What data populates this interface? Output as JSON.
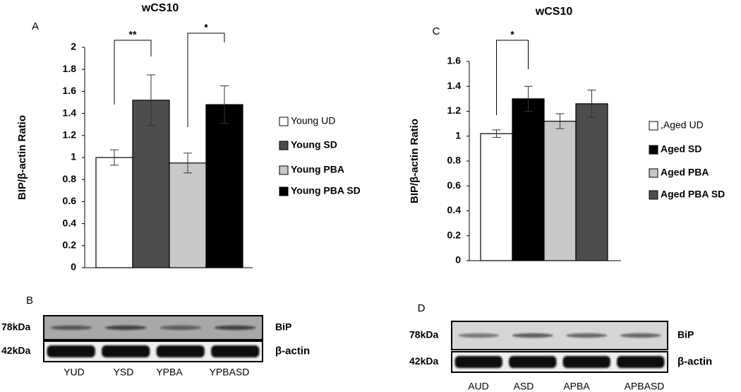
{
  "chart_data": [
    {
      "type": "bar",
      "panel": "A",
      "title": "wCS10",
      "y_label": "BIP/β-actin Ratio",
      "categories": [
        null
      ],
      "series": [
        {
          "name": "Young UD",
          "color": "#ffffff",
          "values": [
            1.0
          ],
          "errors": [
            0.07
          ]
        },
        {
          "name": "Young SD",
          "color": "#4d4d4d",
          "values": [
            1.52
          ],
          "errors": [
            0.23
          ]
        },
        {
          "name": "Young PBA",
          "color": "#c8c8c8",
          "values": [
            0.95
          ],
          "errors": [
            0.09
          ]
        },
        {
          "name": "Young PBA SD",
          "color": "#000000",
          "values": [
            1.48
          ],
          "errors": [
            0.17
          ]
        }
      ],
      "annotations": [
        "**",
        "*"
      ],
      "ylim": [
        0,
        2
      ],
      "yticks": [
        0,
        0.2,
        0.4,
        0.6,
        0.8,
        1,
        1.2,
        1.4,
        1.6,
        1.8,
        2
      ],
      "grid": false,
      "legend": "right"
    },
    {
      "type": "bar",
      "panel": "C",
      "title": "wCS10",
      "y_label": "BIP/β-actin Ratio",
      "categories": [
        null
      ],
      "series": [
        {
          "name": ",Aged UD",
          "color": "#ffffff",
          "values": [
            1.02
          ],
          "errors": [
            0.03
          ]
        },
        {
          "name": "Aged SD",
          "color": "#000000",
          "values": [
            1.3
          ],
          "errors": [
            0.1
          ]
        },
        {
          "name": "Aged PBA",
          "color": "#c8c8c8",
          "values": [
            1.12
          ],
          "errors": [
            0.06
          ]
        },
        {
          "name": "Aged PBA SD",
          "color": "#4d4d4d",
          "values": [
            1.26
          ],
          "errors": [
            0.11
          ]
        }
      ],
      "annotations": [
        "*"
      ],
      "ylim": [
        0,
        1.6
      ],
      "yticks": [
        0,
        0.2,
        0.4,
        0.6,
        0.8,
        1,
        1.2,
        1.4,
        1.6
      ],
      "grid": false,
      "legend": "right"
    }
  ],
  "blots": [
    {
      "panel": "B",
      "top_size": "78kDa",
      "bottom_size": "42kDa",
      "top_protein": "BiP",
      "bottom_protein": "β-actin",
      "lanes": [
        "YUD",
        "YSD",
        "YPBA",
        "YPBASD"
      ]
    },
    {
      "panel": "D",
      "top_size": "78kDa",
      "bottom_size": "42kDa",
      "top_protein": "BiP",
      "bottom_protein": "β-actin",
      "lanes": [
        "AUD",
        "ASD",
        "APBA",
        "APBASD"
      ]
    }
  ]
}
